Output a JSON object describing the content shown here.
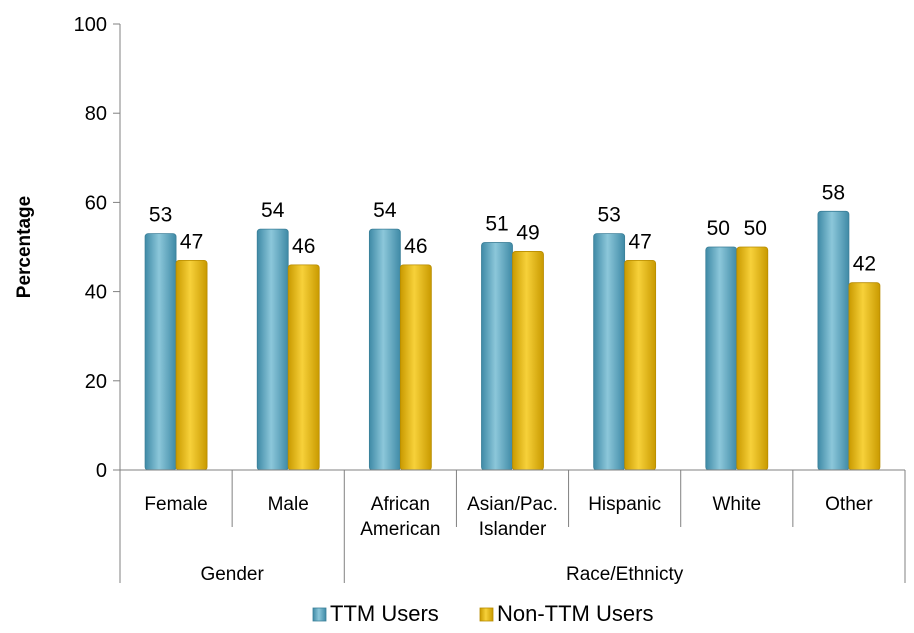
{
  "chart_data": {
    "type": "bar",
    "ylabel": "Percentage",
    "xlabel": "",
    "ylim": [
      0,
      100
    ],
    "yticks": [
      0,
      20,
      40,
      60,
      80,
      100
    ],
    "grid": false,
    "legend_position": "bottom",
    "categories": [
      [
        "Female"
      ],
      [
        "Male"
      ],
      [
        "African",
        "American"
      ],
      [
        "Asian/Pac.",
        "Islander"
      ],
      [
        "Hispanic"
      ],
      [
        "White"
      ],
      [
        "Other"
      ]
    ],
    "groups": [
      {
        "label": "Gender",
        "categories": 2
      },
      {
        "label": "Race/Ethnicty",
        "categories": 5
      }
    ],
    "series": [
      {
        "name": "TTM Users",
        "color": "#5BA3BC",
        "values": [
          53,
          54,
          54,
          51,
          53,
          50,
          58
        ]
      },
      {
        "name": "Non-TTM Users",
        "color": "#E6B800",
        "values": [
          47,
          46,
          46,
          49,
          47,
          50,
          42
        ]
      }
    ]
  }
}
